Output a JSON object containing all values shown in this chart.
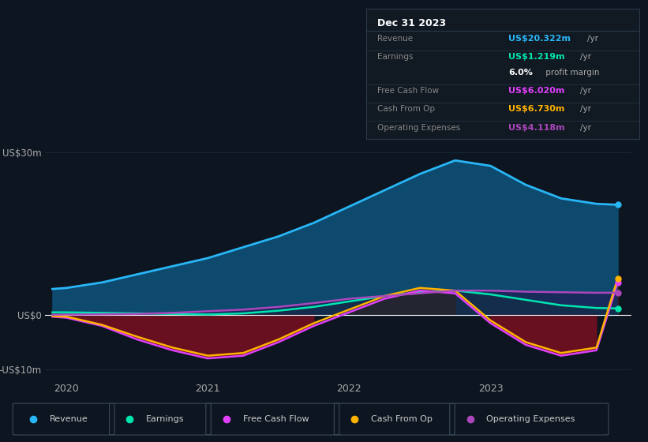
{
  "bg_color": "#0d1520",
  "plot_bg_color": "#0d1520",
  "grid_color": "#1a2a3a",
  "x": [
    2019.9,
    2020.0,
    2020.25,
    2020.5,
    2020.75,
    2021.0,
    2021.25,
    2021.5,
    2021.75,
    2022.0,
    2022.25,
    2022.5,
    2022.75,
    2023.0,
    2023.25,
    2023.5,
    2023.75,
    2023.9
  ],
  "revenue": [
    4.8,
    5.0,
    6.0,
    7.5,
    9.0,
    10.5,
    12.5,
    14.5,
    17.0,
    20.0,
    23.0,
    26.0,
    28.5,
    27.5,
    24.0,
    21.5,
    20.5,
    20.322
  ],
  "earnings": [
    0.5,
    0.5,
    0.4,
    0.3,
    0.2,
    0.1,
    0.3,
    0.8,
    1.5,
    2.5,
    3.5,
    4.2,
    4.5,
    3.8,
    2.8,
    1.8,
    1.3,
    1.219
  ],
  "free_cash_flow": [
    -0.3,
    -0.5,
    -2.0,
    -4.5,
    -6.5,
    -8.0,
    -7.5,
    -5.0,
    -2.0,
    0.5,
    3.0,
    4.5,
    4.0,
    -1.5,
    -5.5,
    -7.5,
    -6.5,
    6.02
  ],
  "cash_from_op": [
    -0.2,
    -0.3,
    -1.8,
    -4.0,
    -6.0,
    -7.5,
    -7.0,
    -4.5,
    -1.5,
    1.0,
    3.5,
    5.0,
    4.5,
    -1.0,
    -5.0,
    -7.0,
    -6.0,
    6.73
  ],
  "operating_expenses": [
    0.05,
    0.1,
    0.15,
    0.2,
    0.4,
    0.7,
    1.0,
    1.5,
    2.2,
    3.0,
    3.5,
    4.0,
    4.5,
    4.5,
    4.3,
    4.2,
    4.1,
    4.118
  ],
  "revenue_color": "#29b6f6",
  "revenue_fill_color": "#0d4a6e",
  "earnings_color": "#00e5b0",
  "free_cash_flow_color": "#e040fb",
  "cash_from_op_color": "#ffb300",
  "operating_expenses_color": "#ab47bc",
  "neg_fill_color": "#6b1020",
  "pos_fill_color": "#4a3000",
  "ylim": [
    -12,
    32
  ],
  "ytick_vals": [
    -10,
    0,
    30
  ],
  "ytick_labels": [
    "-US$10m",
    "US$0",
    "US$30m"
  ],
  "xtick_vals": [
    2020,
    2021,
    2022,
    2023
  ],
  "xtick_labels": [
    "2020",
    "2021",
    "2022",
    "2023"
  ],
  "legend_items": [
    {
      "label": "Revenue",
      "color": "#29b6f6"
    },
    {
      "label": "Earnings",
      "color": "#00e5b0"
    },
    {
      "label": "Free Cash Flow",
      "color": "#e040fb"
    },
    {
      "label": "Cash From Op",
      "color": "#ffb300"
    },
    {
      "label": "Operating Expenses",
      "color": "#ab47bc"
    }
  ],
  "infobox": {
    "date": "Dec 31 2023",
    "rows": [
      {
        "label": "Revenue",
        "value": "US$20.322m",
        "unit": "/yr",
        "vcolor": "#29b6f6",
        "sep_after": true
      },
      {
        "label": "Earnings",
        "value": "US$1.219m",
        "unit": "/yr",
        "vcolor": "#00e5b0",
        "sep_after": false
      },
      {
        "label": "",
        "value": "6.0%",
        "unit": " profit margin",
        "vcolor": "#ffffff",
        "sep_after": true
      },
      {
        "label": "Free Cash Flow",
        "value": "US$6.020m",
        "unit": "/yr",
        "vcolor": "#e040fb",
        "sep_after": true
      },
      {
        "label": "Cash From Op",
        "value": "US$6.730m",
        "unit": "/yr",
        "vcolor": "#ffb300",
        "sep_after": true
      },
      {
        "label": "Operating Expenses",
        "value": "US$4.118m",
        "unit": "/yr",
        "vcolor": "#ab47bc",
        "sep_after": true
      }
    ]
  }
}
